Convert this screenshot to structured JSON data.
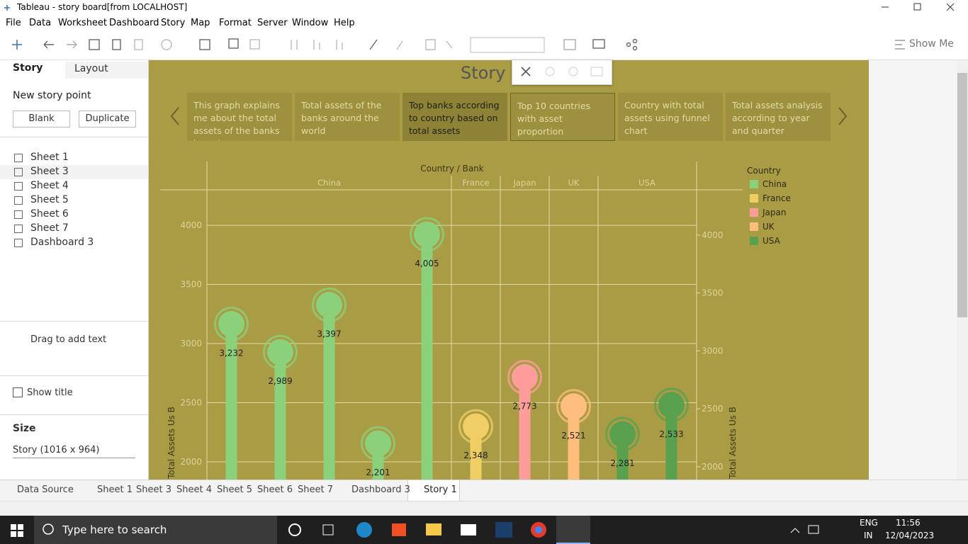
{
  "window": {
    "title": "Tableau - story board[from LOCALHOST]"
  },
  "menu": [
    "File",
    "Data",
    "Worksheet",
    "Dashboard",
    "Story",
    "Map",
    "Format",
    "Server",
    "Window",
    "Help"
  ],
  "toolbar": {
    "show_me": "Show Me"
  },
  "sidebar": {
    "tabs": [
      "Story",
      "Layout"
    ],
    "new_story_point": "New story point",
    "buttons": [
      "Blank",
      "Duplicate"
    ],
    "sheets": [
      "Sheet 1",
      "Sheet 3",
      "Sheet 4",
      "Sheet 5",
      "Sheet 6",
      "Sheet 7",
      "Dashboard 3"
    ],
    "drag_text": "Drag to add text",
    "show_title": "Show title",
    "size_label": "Size",
    "size_value": "Story (1016 x 964)"
  },
  "story": {
    "title": "Story 1",
    "points": [
      "This graph explains me about the total assets of the banks based on",
      "Total assets of the banks around the world",
      "Top banks according to country based on total assets",
      "Top 10 countries with asset proportion",
      "Country with total assets using funnel chart",
      "Total assets analysis according to year and quarter"
    ]
  },
  "chart_data": {
    "type": "lollipop",
    "x_label": "Country / Bank",
    "y_label": "Total Assets Us B",
    "y2_label": "Total Assets Us B",
    "legend_title": "Country",
    "ylim": [
      1850,
      4300
    ],
    "yticks": [
      2000,
      2500,
      3000,
      3500,
      4000
    ],
    "y2lim": [
      1890,
      4390
    ],
    "y2ticks": [
      2000,
      2500,
      3000,
      3500,
      4000
    ],
    "series": [
      {
        "name": "China",
        "color": "#8bd17c",
        "values": [
          3232,
          2989,
          3397,
          2201,
          4005
        ],
        "value_labels": [
          "3,232",
          "2,989",
          "3,397",
          "2,201",
          "4,005"
        ]
      },
      {
        "name": "France",
        "color": "#f1ce63",
        "values": [
          2348
        ],
        "value_labels": [
          "2,348"
        ]
      },
      {
        "name": "Japan",
        "color": "#ff9d9a",
        "values": [
          2773
        ],
        "value_labels": [
          "2,773"
        ]
      },
      {
        "name": "UK",
        "color": "#ffbe7d",
        "values": [
          2521
        ],
        "value_labels": [
          "2,521"
        ]
      },
      {
        "name": "USA",
        "color": "#59a14f",
        "values": [
          2281,
          2533
        ],
        "value_labels": [
          "2,281",
          "2,533"
        ]
      }
    ]
  },
  "tabs": [
    "Data Source",
    "Sheet 1",
    "Sheet 3",
    "Sheet 4",
    "Sheet 5",
    "Sheet 6",
    "Sheet 7",
    "Dashboard 3",
    "Story 1"
  ],
  "taskbar": {
    "search": "Type here to search",
    "lang": "ENG",
    "region": "IN",
    "time": "11:56",
    "date": "12/04/2023"
  }
}
